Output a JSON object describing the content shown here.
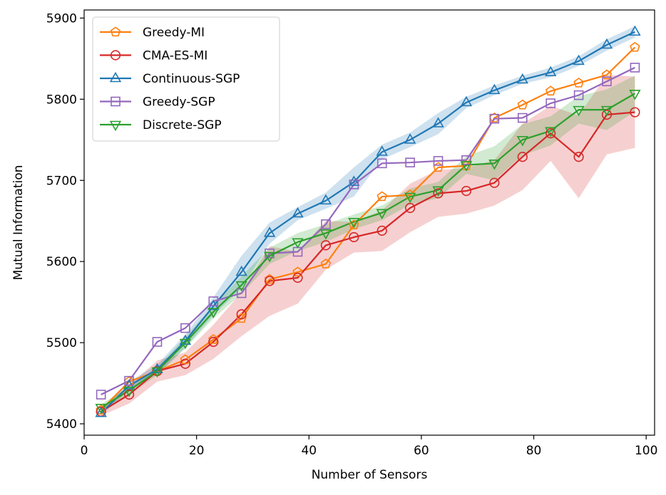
{
  "chart_data": {
    "type": "line",
    "title": "",
    "xlabel": "Number of Sensors",
    "ylabel": "Mutual Information",
    "xlim": [
      0,
      101.5
    ],
    "ylim": [
      5386,
      5910
    ],
    "xticks": [
      0,
      20,
      40,
      60,
      80,
      100
    ],
    "yticks": [
      5400,
      5500,
      5600,
      5700,
      5800,
      5900
    ],
    "x": [
      3,
      8,
      13,
      18,
      23,
      28,
      33,
      38,
      43,
      48,
      53,
      58,
      63,
      68,
      73,
      78,
      83,
      88,
      93,
      98
    ],
    "legend_position": "top-left",
    "series": [
      {
        "name": "Greedy-MI",
        "color": "#ff7f0e",
        "marker": "pentagon",
        "values": [
          5417,
          5452,
          5465,
          5479,
          5504,
          5530,
          5578,
          5587,
          5597,
          5645,
          5680,
          5682,
          5716,
          5718,
          5777,
          5793,
          5810,
          5820,
          5830,
          5864
        ]
      },
      {
        "name": "CMA-ES-MI",
        "color": "#d62728",
        "marker": "circle",
        "values": [
          5415,
          5436,
          5465,
          5474,
          5501,
          5535,
          5576,
          5580,
          5620,
          5630,
          5638,
          5666,
          5684,
          5687,
          5697,
          5729,
          5758,
          5729,
          5781,
          5784
        ],
        "band_lower": [
          5410,
          5425,
          5452,
          5460,
          5480,
          5508,
          5533,
          5548,
          5590,
          5611,
          5613,
          5636,
          5655,
          5659,
          5669,
          5688,
          5724,
          5678,
          5732,
          5740
        ],
        "band_upper": [
          5420,
          5447,
          5478,
          5488,
          5522,
          5562,
          5619,
          5612,
          5650,
          5649,
          5663,
          5696,
          5713,
          5715,
          5725,
          5770,
          5792,
          5780,
          5830,
          5828
        ]
      },
      {
        "name": "Continuous-SGP",
        "color": "#1f77b4",
        "marker": "triangle-up",
        "values": [
          5413,
          5447,
          5467,
          5502,
          5545,
          5587,
          5635,
          5659,
          5675,
          5698,
          5735,
          5750,
          5770,
          5796,
          5811,
          5824,
          5833,
          5847,
          5867,
          5883
        ],
        "band_lower": [
          5410,
          5442,
          5461,
          5494,
          5534,
          5567,
          5622,
          5651,
          5665,
          5680,
          5726,
          5741,
          5757,
          5789,
          5805,
          5819,
          5827,
          5841,
          5860,
          5876
        ],
        "band_upper": [
          5416,
          5452,
          5473,
          5510,
          5556,
          5607,
          5648,
          5667,
          5685,
          5716,
          5744,
          5759,
          5783,
          5803,
          5817,
          5829,
          5839,
          5853,
          5874,
          5890
        ]
      },
      {
        "name": "Greedy-SGP",
        "color": "#9467bd",
        "marker": "square",
        "values": [
          5436,
          5453,
          5501,
          5518,
          5551,
          5561,
          5610,
          5612,
          5646,
          5695,
          5721,
          5722,
          5724,
          5725,
          5776,
          5777,
          5795,
          5805,
          5822,
          5839
        ]
      },
      {
        "name": "Discrete-SGP",
        "color": "#2ca02c",
        "marker": "triangle-down",
        "values": [
          5420,
          5441,
          5465,
          5500,
          5538,
          5571,
          5607,
          5624,
          5635,
          5649,
          5660,
          5680,
          5688,
          5719,
          5721,
          5750,
          5761,
          5787,
          5787,
          5807
        ],
        "band_lower": [
          5416,
          5436,
          5460,
          5493,
          5530,
          5560,
          5597,
          5613,
          5624,
          5640,
          5651,
          5670,
          5678,
          5708,
          5700,
          5731,
          5743,
          5770,
          5762,
          5785
        ],
        "band_upper": [
          5424,
          5446,
          5470,
          5507,
          5546,
          5582,
          5617,
          5635,
          5646,
          5658,
          5669,
          5690,
          5698,
          5730,
          5742,
          5769,
          5779,
          5804,
          5812,
          5829
        ]
      }
    ]
  }
}
